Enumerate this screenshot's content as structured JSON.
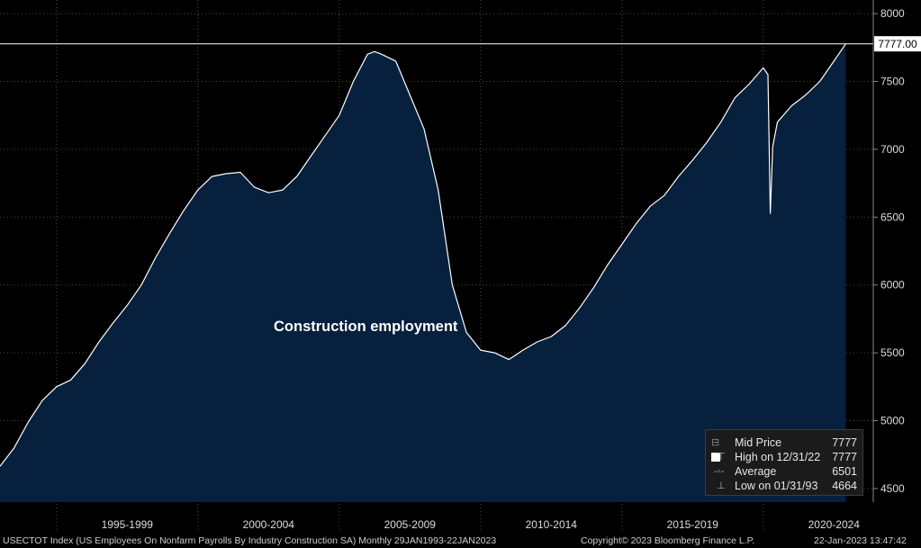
{
  "chart_data": {
    "type": "area",
    "title": "Construction employment",
    "ylim": [
      4400,
      8100
    ],
    "y_ticks": [
      4500,
      5000,
      5500,
      6000,
      6500,
      7000,
      7500,
      8000
    ],
    "x_periods": [
      "1995-1999",
      "2000-2004",
      "2005-2009",
      "2010-2014",
      "2015-2019",
      "2020-2024"
    ],
    "x_range": [
      "1993-01",
      "2023-01"
    ],
    "last_value_label": "7777.00",
    "grid": true,
    "series": [
      {
        "x": [
          "1993-01",
          "1993-07",
          "1994-01",
          "1994-07",
          "1995-01",
          "1995-07",
          "1996-01",
          "1996-07",
          "1997-01",
          "1997-07",
          "1998-01",
          "1998-07",
          "1999-01",
          "1999-07",
          "2000-01",
          "2000-07",
          "2001-01",
          "2001-07",
          "2002-01",
          "2002-07",
          "2003-01",
          "2003-07",
          "2004-01",
          "2004-07",
          "2005-01",
          "2005-07",
          "2006-01",
          "2006-04",
          "2006-07",
          "2007-01",
          "2007-07",
          "2008-01",
          "2008-07",
          "2009-01",
          "2009-07",
          "2010-01",
          "2010-07",
          "2011-01",
          "2011-07",
          "2012-01",
          "2012-07",
          "2013-01",
          "2013-07",
          "2014-01",
          "2014-07",
          "2015-01",
          "2015-07",
          "2016-01",
          "2016-07",
          "2017-01",
          "2017-07",
          "2018-01",
          "2018-07",
          "2019-01",
          "2019-07",
          "2020-01",
          "2020-03",
          "2020-04",
          "2020-05",
          "2020-07",
          "2021-01",
          "2021-07",
          "2022-01",
          "2022-07",
          "2022-12"
        ],
        "values": [
          4664,
          4800,
          4990,
          5150,
          5250,
          5300,
          5420,
          5580,
          5720,
          5850,
          6000,
          6200,
          6380,
          6550,
          6700,
          6800,
          6820,
          6830,
          6720,
          6680,
          6700,
          6800,
          6950,
          7100,
          7250,
          7500,
          7700,
          7720,
          7700,
          7650,
          7400,
          7150,
          6700,
          6000,
          5650,
          5520,
          5500,
          5450,
          5520,
          5580,
          5620,
          5700,
          5830,
          5980,
          6150,
          6300,
          6450,
          6580,
          6660,
          6800,
          6920,
          7050,
          7200,
          7380,
          7480,
          7600,
          7550,
          6527,
          7020,
          7200,
          7320,
          7400,
          7500,
          7650,
          7777
        ]
      }
    ]
  },
  "legend": {
    "items": [
      {
        "label": "Mid Price",
        "value": "7777",
        "icon": "white-square-icon"
      },
      {
        "label": "High on 12/31/22",
        "value": "7777",
        "icon": "high-marker-icon"
      },
      {
        "label": "Average",
        "value": "6501",
        "icon": "average-marker-icon"
      },
      {
        "label": "Low on 01/31/93",
        "value": "4664",
        "icon": "low-marker-icon"
      }
    ]
  },
  "footer": {
    "description": "USECTOT Index (US Employees On Nonfarm Payrolls By Industry Construction SA)  Monthly 29JAN1993-22JAN2023",
    "copyright": "Copyright© 2023 Bloomberg Finance L.P.",
    "timestamp": "22-Jan-2023 13:47:42"
  },
  "colors": {
    "background": "#000000",
    "area_fill": "#06203d",
    "line": "#ffffff",
    "grid": "#4a4a4a"
  }
}
